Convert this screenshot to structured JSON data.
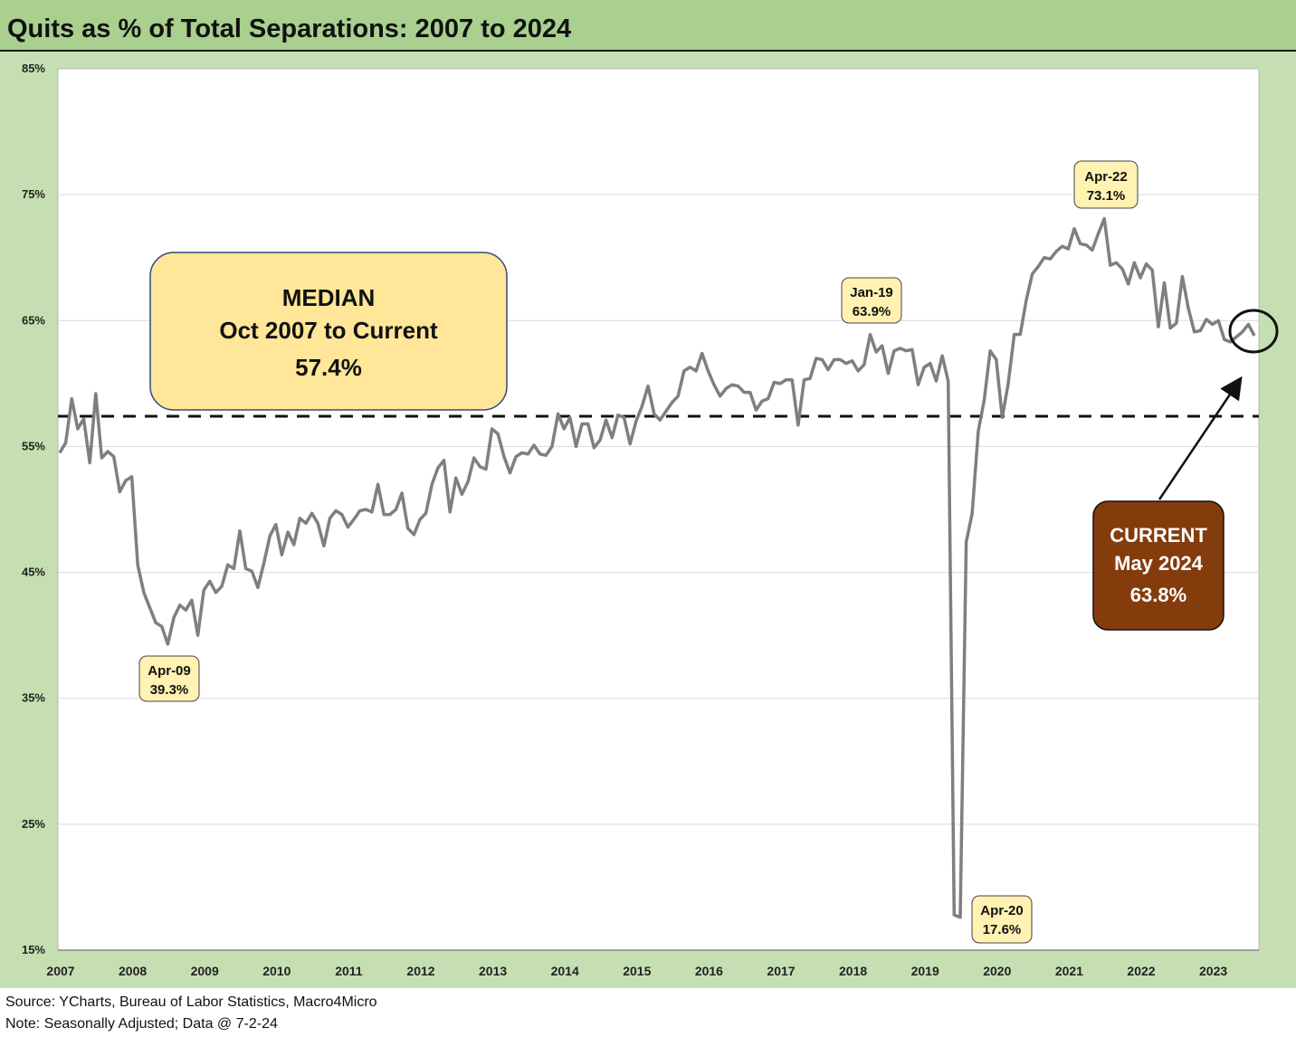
{
  "title": "Quits as % of Total Separations: 2007 to 2024",
  "footer": {
    "source": "Source: YCharts, Bureau of Labor Statistics, Macro4Micro",
    "note": "Note: Seasonally Adjusted; Data @ 7-2-24"
  },
  "colors": {
    "line": "#7f7f7f",
    "median_box": "#ffe699",
    "current_box": "#843c0c",
    "callout_box": "#fff2b3",
    "background": "#c6dfb2",
    "title_bar": "#a9d08e"
  },
  "median_box": {
    "line1": "MEDIAN",
    "line2": "Oct 2007 to Current",
    "line3": "57.4%"
  },
  "current_box": {
    "line1": "CURRENT",
    "line2": "May 2024",
    "line3": "63.8%"
  },
  "chart_data": {
    "type": "line",
    "title": "Quits as % of Total Separations: 2007 to 2024",
    "xlabel": "",
    "ylabel": "",
    "ylim": [
      15,
      85
    ],
    "y_ticks": [
      "15%",
      "25%",
      "35%",
      "45%",
      "55%",
      "65%",
      "75%",
      "85%"
    ],
    "y_tick_values": [
      15,
      25,
      35,
      45,
      55,
      65,
      75,
      85
    ],
    "x_tick_labels": [
      "2007",
      "2008",
      "2009",
      "2010",
      "2011",
      "2012",
      "2013",
      "2014",
      "2015",
      "2016",
      "2017",
      "2018",
      "2019",
      "2020",
      "2021",
      "2022",
      "2023"
    ],
    "grid": true,
    "x_start": "2007-10",
    "frequency": "monthly",
    "values": [
      54.5,
      55.3,
      58.8,
      56.4,
      57.2,
      53.7,
      59.2,
      54.1,
      54.6,
      54.2,
      51.4,
      52.3,
      52.6,
      45.6,
      43.4,
      42.2,
      41.0,
      40.7,
      39.3,
      41.4,
      42.4,
      42.0,
      42.8,
      40.0,
      43.6,
      44.3,
      43.4,
      43.9,
      45.6,
      45.3,
      48.3,
      45.3,
      45.1,
      43.8,
      45.7,
      47.9,
      48.8,
      46.4,
      48.2,
      47.2,
      49.3,
      48.9,
      49.7,
      48.9,
      47.1,
      49.3,
      49.9,
      49.6,
      48.6,
      49.2,
      49.9,
      50.0,
      49.8,
      52.0,
      49.6,
      49.6,
      50.0,
      51.3,
      48.5,
      48.0,
      49.2,
      49.7,
      52.0,
      53.3,
      53.9,
      49.8,
      52.5,
      51.2,
      52.2,
      54.1,
      53.4,
      53.2,
      56.4,
      56.0,
      54.2,
      52.9,
      54.2,
      54.5,
      54.4,
      55.1,
      54.4,
      54.3,
      55.0,
      57.6,
      56.4,
      57.3,
      55.0,
      56.8,
      56.8,
      54.9,
      55.5,
      57.1,
      55.7,
      57.5,
      57.3,
      55.2,
      57.0,
      58.2,
      59.8,
      57.6,
      57.1,
      57.8,
      58.5,
      59.0,
      61.0,
      61.3,
      61.0,
      62.4,
      61.0,
      59.9,
      59.0,
      59.6,
      59.9,
      59.8,
      59.3,
      59.3,
      57.9,
      58.6,
      58.8,
      60.1,
      60.0,
      60.3,
      60.3,
      56.7,
      60.3,
      60.4,
      62.0,
      61.9,
      61.1,
      61.9,
      61.9,
      61.6,
      61.8,
      61.0,
      61.5,
      63.9,
      62.5,
      63.0,
      60.8,
      62.6,
      62.8,
      62.6,
      62.7,
      59.9,
      61.3,
      61.6,
      60.2,
      62.2,
      60.2,
      17.8,
      17.6,
      47.4,
      49.7,
      56.2,
      58.7,
      62.6,
      61.9,
      57.3,
      60.0,
      63.9,
      63.9,
      66.6,
      68.7,
      69.3,
      70.0,
      69.9,
      70.5,
      70.9,
      70.7,
      72.3,
      71.1,
      71.0,
      70.6,
      71.9,
      73.1,
      69.4,
      69.6,
      69.1,
      67.9,
      69.6,
      68.4,
      69.5,
      69.0,
      64.5,
      68.0,
      64.4,
      64.8,
      68.5,
      66.0,
      64.1,
      64.2,
      65.1,
      64.7,
      65.0,
      63.5,
      63.3,
      63.7,
      64.1,
      64.7,
      63.8
    ],
    "median": 57.4,
    "annotations": [
      {
        "date": "Apr-09",
        "value": "39.3%"
      },
      {
        "date": "Jan-19",
        "value": "63.9%"
      },
      {
        "date": "Apr-20",
        "value": "17.6%"
      },
      {
        "date": "Apr-22",
        "value": "73.1%"
      }
    ]
  }
}
